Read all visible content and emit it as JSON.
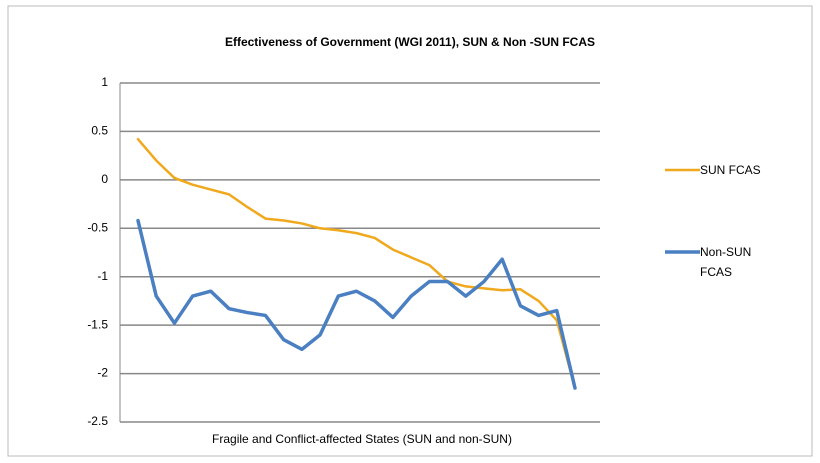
{
  "chart_data": {
    "type": "line",
    "title": "Effectiveness of Government (WGI 2011), SUN & Non -SUN FCAS",
    "xlabel": "Fragile and Conflict-affected States (SUN and non-SUN)",
    "categories": [
      null,
      null,
      null,
      null,
      null,
      null,
      null,
      null,
      null,
      null,
      null,
      null,
      null,
      null,
      null,
      null,
      null,
      null,
      null,
      null,
      null,
      null,
      null,
      null,
      null
    ],
    "series": [
      {
        "name": "SUN FCAS",
        "color": "#f0a81c",
        "values": [
          0.42,
          0.2,
          0.02,
          -0.05,
          -0.1,
          -0.15,
          -0.28,
          -0.4,
          -0.42,
          -0.45,
          -0.5,
          -0.52,
          -0.55,
          -0.6,
          -0.72,
          -0.8,
          -0.88,
          -1.05,
          -1.1,
          -1.12,
          -1.14,
          -1.13,
          -1.25,
          -1.45,
          -2.15
        ]
      },
      {
        "name": "Non-SUN FCAS",
        "color": "#4a7fc1",
        "values": [
          -0.42,
          -1.2,
          -1.48,
          -1.2,
          -1.15,
          -1.33,
          -1.37,
          -1.4,
          -1.65,
          -1.75,
          -1.6,
          -1.2,
          -1.15,
          -1.25,
          -1.42,
          -1.2,
          -1.05,
          -1.05,
          -1.2,
          -1.05,
          -0.82,
          -1.3,
          -1.4,
          -1.35,
          -2.15
        ]
      }
    ],
    "ylim": [
      -2.5,
      1
    ],
    "yticks": [
      -2.5,
      -2,
      -1.5,
      -1,
      -0.5,
      0,
      0.5,
      1
    ],
    "grid": true,
    "legend": "right"
  }
}
